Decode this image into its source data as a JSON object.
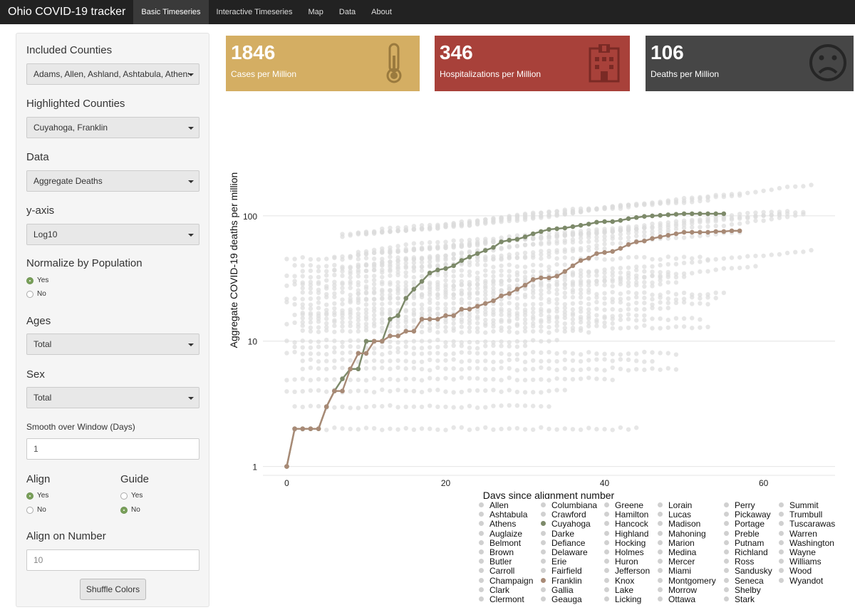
{
  "navbar": {
    "brand": "Ohio COVID-19 tracker",
    "tabs": [
      "Basic Timeseries",
      "Interactive Timeseries",
      "Map",
      "Data",
      "About"
    ],
    "active_tab": "Basic Timeseries"
  },
  "sidebar": {
    "included_label": "Included Counties",
    "included_value": "Adams, Allen, Ashland, Ashtabula, Athens",
    "highlighted_label": "Highlighted Counties",
    "highlighted_value": "Cuyahoga, Franklin",
    "data_label": "Data",
    "data_value": "Aggregate Deaths",
    "yaxis_label": "y-axis",
    "yaxis_value": "Log10",
    "normalize_label": "Normalize by Population",
    "normalize_yes": "Yes",
    "normalize_no": "No",
    "ages_label": "Ages",
    "ages_value": "Total",
    "sex_label": "Sex",
    "sex_value": "Total",
    "smooth_label": "Smooth over Window (Days)",
    "smooth_value": "1",
    "align_label": "Align",
    "align_yes": "Yes",
    "align_no": "No",
    "guide_label": "Guide",
    "guide_yes": "Yes",
    "guide_no": "No",
    "align_number_label": "Align on Number",
    "align_number_placeholder": "10",
    "shuffle_button": "Shuffle Colors"
  },
  "value_boxes": [
    {
      "value": "1846",
      "subtitle": "Cases per Million",
      "color": "#d4ae63",
      "icon": "thermometer-icon"
    },
    {
      "value": "346",
      "subtitle": "Hospitalizations per Million",
      "color": "#a8413a",
      "icon": "hospital-icon"
    },
    {
      "value": "106",
      "subtitle": "Deaths per Million",
      "color": "#464646",
      "icon": "frown-icon"
    }
  ],
  "chart_data": {
    "type": "line",
    "xlabel": "Days since alignment number",
    "ylabel": "Aggregate COVID-19 deaths per million",
    "x_ticks": [
      0,
      20,
      40,
      60
    ],
    "y_ticks": [
      1,
      10,
      100
    ],
    "y_scale": "log10",
    "xlim": [
      -3,
      69
    ],
    "ylim": [
      0.85,
      500
    ],
    "grid": true,
    "highlight_colors": {
      "Cuyahoga": "#7d8a6a",
      "Franklin": "#a88a76"
    },
    "series": [
      {
        "name": "Cuyahoga",
        "color": "#7d8a6a",
        "x": [
          0,
          1,
          2,
          3,
          4,
          5,
          6,
          7,
          8,
          9,
          10,
          11,
          12,
          13,
          14,
          15,
          16,
          17,
          18,
          19,
          20,
          21,
          22,
          23,
          24,
          25,
          26,
          27,
          28,
          29,
          30,
          31,
          32,
          33,
          34,
          35,
          36,
          37,
          38,
          39,
          40,
          41,
          42,
          43,
          44,
          45,
          46,
          47,
          48,
          49,
          50,
          51,
          52,
          53,
          54,
          55
        ],
        "y": [
          1,
          2,
          2,
          2,
          2,
          3,
          4,
          5,
          6,
          6,
          10,
          10,
          10,
          15,
          16,
          22,
          26,
          30,
          35,
          37,
          38,
          40,
          44,
          47,
          50,
          53,
          56,
          62,
          64,
          65,
          68,
          72,
          75,
          78,
          79,
          80,
          82,
          84,
          86,
          89,
          90,
          90,
          92,
          95,
          97,
          99,
          100,
          101,
          102,
          103,
          104,
          104,
          104,
          104,
          104,
          104
        ]
      },
      {
        "name": "Franklin",
        "color": "#a88a76",
        "x": [
          0,
          1,
          2,
          3,
          4,
          5,
          6,
          7,
          8,
          9,
          10,
          11,
          12,
          13,
          14,
          15,
          16,
          17,
          18,
          19,
          20,
          21,
          22,
          23,
          24,
          25,
          26,
          27,
          28,
          29,
          30,
          31,
          32,
          33,
          34,
          35,
          36,
          37,
          38,
          39,
          40,
          41,
          42,
          43,
          44,
          45,
          46,
          47,
          48,
          49,
          50,
          51,
          52,
          53,
          54,
          55,
          56,
          57
        ],
        "y": [
          1,
          2,
          2,
          2,
          2,
          3,
          4,
          4,
          6,
          8,
          8,
          10,
          10,
          11,
          11,
          12,
          12,
          15,
          15,
          15,
          16,
          16,
          18,
          18,
          19,
          20,
          21,
          23,
          24,
          26,
          28,
          31,
          32,
          32,
          33,
          36,
          40,
          44,
          46,
          50,
          51,
          52,
          55,
          59,
          62,
          63,
          66,
          68,
          70,
          72,
          74,
          74,
          74,
          74,
          75,
          75,
          76,
          76
        ]
      }
    ],
    "legend_colors": {
      "muted": "#d0d0d0"
    },
    "legend": [
      [
        "Allen",
        "Ashtabula",
        "Athens",
        "Auglaize",
        "Belmont",
        "Brown",
        "Butler",
        "Carroll",
        "Champaign",
        "Clark",
        "Clermont"
      ],
      [
        "Columbiana",
        "Crawford",
        "Cuyahoga",
        "Darke",
        "Defiance",
        "Delaware",
        "Erie",
        "Fairfield",
        "Franklin",
        "Gallia",
        "Geauga"
      ],
      [
        "Greene",
        "Hamilton",
        "Hancock",
        "Highland",
        "Hocking",
        "Holmes",
        "Huron",
        "Jefferson",
        "Knox",
        "Lake",
        "Licking"
      ],
      [
        "Lorain",
        "Lucas",
        "Madison",
        "Mahoning",
        "Marion",
        "Medina",
        "Mercer",
        "Miami",
        "Montgomery",
        "Morrow",
        "Ottawa"
      ],
      [
        "Perry",
        "Pickaway",
        "Portage",
        "Preble",
        "Putnam",
        "Richland",
        "Ross",
        "Sandusky",
        "Seneca",
        "Shelby",
        "Stark"
      ],
      [
        "Summit",
        "Trumbull",
        "Tuscarawas",
        "Warren",
        "Washington",
        "Wayne",
        "Williams",
        "Wood",
        "Wyandot"
      ]
    ]
  }
}
